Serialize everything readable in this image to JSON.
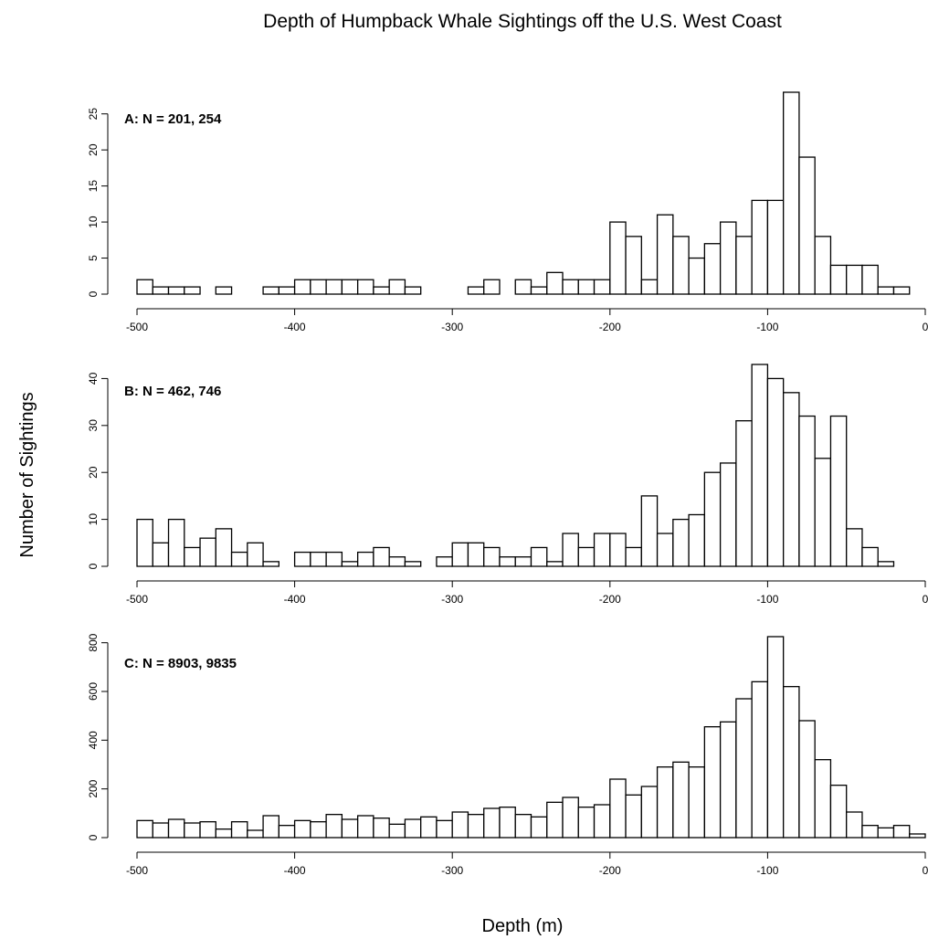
{
  "figure": {
    "title": "Depth of Humpback Whale Sightings off the U.S. West Coast",
    "xlabel": "Depth (m)",
    "ylabel": "Number of Sightings"
  },
  "chart_data": [
    {
      "type": "bar",
      "panel": "A",
      "annotation": "A: N = 201, 254",
      "title": "",
      "xlabel": "Depth (m)",
      "ylabel": "Number of Sightings",
      "bin_width": 10,
      "bin_starts": [
        -500,
        -490,
        -480,
        -470,
        -460,
        -450,
        -440,
        -430,
        -420,
        -410,
        -400,
        -390,
        -380,
        -370,
        -360,
        -350,
        -340,
        -330,
        -320,
        -310,
        -300,
        -290,
        -280,
        -270,
        -260,
        -250,
        -240,
        -230,
        -220,
        -210,
        -200,
        -190,
        -180,
        -170,
        -160,
        -150,
        -140,
        -130,
        -120,
        -110,
        -100,
        -90,
        -80,
        -70,
        -60,
        -50,
        -40,
        -30,
        -20,
        -10
      ],
      "values": [
        2,
        1,
        1,
        1,
        0,
        1,
        0,
        0,
        1,
        1,
        2,
        2,
        2,
        2,
        2,
        1,
        2,
        1,
        0,
        0,
        0,
        1,
        2,
        0,
        2,
        1,
        3,
        2,
        2,
        2,
        10,
        8,
        2,
        11,
        8,
        5,
        7,
        10,
        8,
        13,
        13,
        28,
        19,
        8,
        4,
        4,
        4,
        1,
        1,
        0
      ],
      "xlim": [
        -500,
        0
      ],
      "ylim": [
        0,
        28
      ],
      "xticks": [
        -500,
        -400,
        -300,
        -200,
        -100,
        0
      ],
      "yticks": [
        0,
        5,
        10,
        15,
        20,
        25
      ],
      "grid": false
    },
    {
      "type": "bar",
      "panel": "B",
      "annotation": "B: N = 462, 746",
      "title": "",
      "xlabel": "Depth (m)",
      "ylabel": "Number of Sightings",
      "bin_width": 10,
      "bin_starts": [
        -500,
        -490,
        -480,
        -470,
        -460,
        -450,
        -440,
        -430,
        -420,
        -410,
        -400,
        -390,
        -380,
        -370,
        -360,
        -350,
        -340,
        -330,
        -320,
        -310,
        -300,
        -290,
        -280,
        -270,
        -260,
        -250,
        -240,
        -230,
        -220,
        -210,
        -200,
        -190,
        -180,
        -170,
        -160,
        -150,
        -140,
        -130,
        -120,
        -110,
        -100,
        -90,
        -80,
        -70,
        -60,
        -50,
        -40,
        -30,
        -20,
        -10
      ],
      "values": [
        10,
        5,
        10,
        4,
        6,
        8,
        3,
        5,
        1,
        0,
        3,
        3,
        3,
        1,
        3,
        4,
        2,
        1,
        0,
        2,
        5,
        5,
        4,
        2,
        2,
        4,
        1,
        7,
        4,
        7,
        7,
        4,
        15,
        7,
        10,
        11,
        20,
        22,
        31,
        43,
        40,
        37,
        32,
        23,
        32,
        8,
        4,
        1,
        0,
        0
      ],
      "xlim": [
        -500,
        0
      ],
      "ylim": [
        0,
        43
      ],
      "xticks": [
        -500,
        -400,
        -300,
        -200,
        -100,
        0
      ],
      "yticks": [
        0,
        10,
        20,
        30,
        40
      ],
      "grid": false
    },
    {
      "type": "bar",
      "panel": "C",
      "annotation": "C: N = 8903, 9835",
      "title": "",
      "xlabel": "Depth (m)",
      "ylabel": "Number of Sightings",
      "bin_width": 10,
      "bin_starts": [
        -500,
        -490,
        -480,
        -470,
        -460,
        -450,
        -440,
        -430,
        -420,
        -410,
        -400,
        -390,
        -380,
        -370,
        -360,
        -350,
        -340,
        -330,
        -320,
        -310,
        -300,
        -290,
        -280,
        -270,
        -260,
        -250,
        -240,
        -230,
        -220,
        -210,
        -200,
        -190,
        -180,
        -170,
        -160,
        -150,
        -140,
        -130,
        -120,
        -110,
        -100,
        -90,
        -80,
        -70,
        -60,
        -50,
        -40,
        -30,
        -20,
        -10
      ],
      "values": [
        70,
        60,
        75,
        60,
        65,
        35,
        65,
        30,
        90,
        50,
        70,
        65,
        95,
        75,
        90,
        80,
        55,
        75,
        85,
        70,
        105,
        95,
        120,
        125,
        95,
        85,
        145,
        165,
        125,
        135,
        240,
        175,
        210,
        290,
        310,
        290,
        455,
        475,
        570,
        640,
        825,
        620,
        480,
        320,
        215,
        105,
        50,
        40,
        50,
        15
      ],
      "xlim": [
        -500,
        0
      ],
      "ylim": [
        0,
        825
      ],
      "xticks": [
        -500,
        -400,
        -300,
        -200,
        -100,
        0
      ],
      "yticks": [
        0,
        200,
        400,
        600,
        800
      ],
      "grid": false
    }
  ]
}
